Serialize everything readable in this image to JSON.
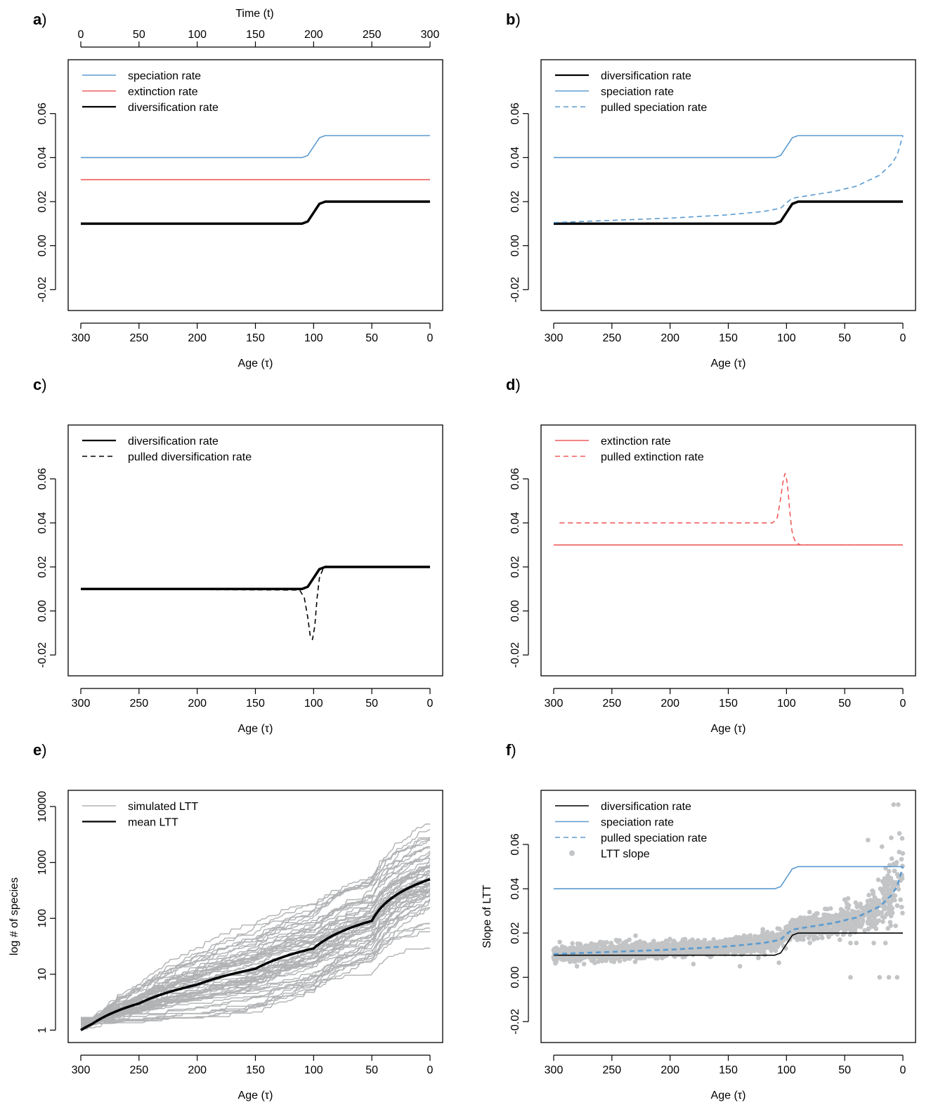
{
  "figure": {
    "colors": {
      "blue": "#5b9bd0",
      "red": "#ef5b5b",
      "black": "#000000",
      "gray": "#b0b2b4",
      "lightgray": "#c2c4c6"
    }
  },
  "chart_data": [
    {
      "panel": "a",
      "type": "line",
      "xlabel": "Age (τ)",
      "top_xlabel": "Time (t)",
      "ylabel": "",
      "xlim": [
        300,
        0
      ],
      "ylim": [
        -0.025,
        0.08
      ],
      "x_ticks": [
        300,
        250,
        200,
        150,
        100,
        50,
        0
      ],
      "top_ticks": [
        0,
        50,
        100,
        150,
        200,
        250,
        300
      ],
      "y_ticks": [
        "-0.02",
        "0.00",
        "0.02",
        "0.04",
        "0.06"
      ],
      "legend": "top-left",
      "series": [
        {
          "name": "speciation rate",
          "color": "#5b9bd0",
          "style": "solid",
          "width": 1.6,
          "x": [
            300,
            110,
            105,
            100,
            95,
            90,
            0
          ],
          "y": [
            0.04,
            0.04,
            0.041,
            0.045,
            0.049,
            0.05,
            0.05
          ]
        },
        {
          "name": "extinction rate",
          "color": "#ef5b5b",
          "style": "solid",
          "width": 1.6,
          "x": [
            300,
            0
          ],
          "y": [
            0.03,
            0.03
          ]
        },
        {
          "name": "diversification rate",
          "color": "#000000",
          "style": "solid",
          "width": 3.5,
          "x": [
            300,
            110,
            105,
            100,
            95,
            90,
            0
          ],
          "y": [
            0.01,
            0.01,
            0.011,
            0.015,
            0.019,
            0.02,
            0.02
          ]
        }
      ]
    },
    {
      "panel": "b",
      "type": "line",
      "xlabel": "Age (τ)",
      "ylabel": "",
      "xlim": [
        300,
        0
      ],
      "ylim": [
        -0.025,
        0.08
      ],
      "x_ticks": [
        300,
        250,
        200,
        150,
        100,
        50,
        0
      ],
      "y_ticks": [
        "-0.02",
        "0.00",
        "0.02",
        "0.04",
        "0.06"
      ],
      "legend": "top-left",
      "series": [
        {
          "name": "diversification rate",
          "color": "#000000",
          "style": "solid",
          "width": 3.5,
          "x": [
            300,
            110,
            105,
            100,
            95,
            90,
            0
          ],
          "y": [
            0.01,
            0.01,
            0.011,
            0.015,
            0.019,
            0.02,
            0.02
          ]
        },
        {
          "name": "speciation rate",
          "color": "#5b9bd0",
          "style": "solid",
          "width": 1.6,
          "x": [
            300,
            110,
            105,
            100,
            95,
            90,
            0
          ],
          "y": [
            0.04,
            0.04,
            0.041,
            0.045,
            0.049,
            0.05,
            0.05
          ]
        },
        {
          "name": "pulled speciation rate",
          "color": "#5b9bd0",
          "style": "dashed",
          "width": 1.6,
          "x": [
            300,
            250,
            200,
            150,
            120,
            105,
            100,
            95,
            90,
            60,
            40,
            20,
            10,
            5,
            0
          ],
          "y": [
            0.0105,
            0.0115,
            0.0125,
            0.014,
            0.0155,
            0.017,
            0.0195,
            0.0215,
            0.022,
            0.0245,
            0.027,
            0.032,
            0.037,
            0.041,
            0.05
          ]
        }
      ]
    },
    {
      "panel": "c",
      "type": "line",
      "xlabel": "Age (τ)",
      "ylabel": "",
      "xlim": [
        300,
        0
      ],
      "ylim": [
        -0.025,
        0.08
      ],
      "x_ticks": [
        300,
        250,
        200,
        150,
        100,
        50,
        0
      ],
      "y_ticks": [
        "-0.02",
        "0.00",
        "0.02",
        "0.04",
        "0.06"
      ],
      "legend": "top-left",
      "series": [
        {
          "name": "diversification rate",
          "color": "#000000",
          "style": "solid",
          "width": 3.5,
          "x": [
            300,
            110,
            105,
            100,
            95,
            90,
            0
          ],
          "y": [
            0.01,
            0.01,
            0.011,
            0.015,
            0.019,
            0.02,
            0.02
          ]
        },
        {
          "name": "pulled diversification rate",
          "color": "#000000",
          "style": "dashed",
          "width": 1.6,
          "x": [
            300,
            112,
            108,
            105,
            103,
            101,
            99,
            97,
            95,
            92,
            88,
            0
          ],
          "y": [
            0.01,
            0.0095,
            0.006,
            -0.003,
            -0.011,
            -0.013,
            -0.007,
            0.006,
            0.015,
            0.019,
            0.02,
            0.02
          ]
        }
      ]
    },
    {
      "panel": "d",
      "type": "line",
      "xlabel": "Age (τ)",
      "ylabel": "",
      "xlim": [
        300,
        0
      ],
      "ylim": [
        -0.025,
        0.08
      ],
      "x_ticks": [
        300,
        250,
        200,
        150,
        100,
        50,
        0
      ],
      "y_ticks": [
        "-0.02",
        "0.00",
        "0.02",
        "0.04",
        "0.06"
      ],
      "legend": "top-left",
      "series": [
        {
          "name": "extinction rate",
          "color": "#ef5b5b",
          "style": "solid",
          "width": 1.6,
          "x": [
            300,
            0
          ],
          "y": [
            0.03,
            0.03
          ]
        },
        {
          "name": "pulled extinction rate",
          "color": "#ef5b5b",
          "style": "dashed",
          "width": 1.6,
          "x": [
            295,
            112,
            108,
            105,
            103,
            101,
            99,
            97,
            95,
            92,
            88,
            0
          ],
          "y": [
            0.04,
            0.04,
            0.042,
            0.051,
            0.059,
            0.063,
            0.057,
            0.044,
            0.035,
            0.031,
            0.03,
            0.03
          ]
        }
      ]
    },
    {
      "panel": "e",
      "type": "line",
      "xlabel": "Age (τ)",
      "ylabel": "log # of species",
      "xlim": [
        300,
        0
      ],
      "ylim": [
        0.9,
        13000
      ],
      "log_y": true,
      "x_ticks": [
        300,
        250,
        200,
        150,
        100,
        50,
        0
      ],
      "y_ticks": [
        "1",
        "10",
        "100",
        "1000",
        "10000"
      ],
      "y_tick_values": [
        1,
        10,
        100,
        1000,
        10000
      ],
      "legend": "top-left",
      "legend_entries": [
        {
          "name": "simulated LTT",
          "color": "#b0b2b4"
        },
        {
          "name": "mean LTT",
          "color": "#000000"
        }
      ],
      "mean": {
        "x": [
          300,
          290,
          250,
          200,
          150,
          100,
          50,
          0
        ],
        "y": [
          1,
          1.3,
          3,
          6.5,
          12.5,
          29,
          90,
          500
        ]
      },
      "simulated": {
        "count": 60,
        "spread": "lognormal around mean",
        "range_at_0": [
          110,
          1500
        ]
      }
    },
    {
      "panel": "f",
      "type": "scatter",
      "xlabel": "Age (τ)",
      "ylabel": "Slope of LTT",
      "xlim": [
        300,
        0
      ],
      "ylim": [
        -0.025,
        0.08
      ],
      "x_ticks": [
        300,
        250,
        200,
        150,
        100,
        50,
        0
      ],
      "y_ticks": [
        "-0.02",
        "0.00",
        "0.02",
        "0.04",
        "0.06"
      ],
      "legend": "top-left",
      "series": [
        {
          "name": "diversification rate",
          "color": "#000000",
          "style": "solid",
          "width": 1.6,
          "x": [
            300,
            110,
            105,
            100,
            95,
            90,
            0
          ],
          "y": [
            0.01,
            0.01,
            0.011,
            0.015,
            0.019,
            0.02,
            0.02
          ]
        },
        {
          "name": "speciation rate",
          "color": "#5b9bd0",
          "style": "solid",
          "width": 1.6,
          "x": [
            300,
            110,
            105,
            100,
            95,
            90,
            0
          ],
          "y": [
            0.04,
            0.04,
            0.041,
            0.045,
            0.049,
            0.05,
            0.05
          ]
        },
        {
          "name": "pulled speciation rate",
          "color": "#5b9bd0",
          "style": "dashed",
          "width": 2.6,
          "x": [
            300,
            250,
            200,
            150,
            120,
            105,
            100,
            95,
            90,
            60,
            40,
            20,
            10,
            5,
            0
          ],
          "y": [
            0.0105,
            0.0115,
            0.0125,
            0.014,
            0.0155,
            0.017,
            0.0195,
            0.0215,
            0.022,
            0.0245,
            0.027,
            0.032,
            0.037,
            0.041,
            0.05
          ]
        },
        {
          "name": "LTT slope",
          "color": "#c2c4c6",
          "style": "points"
        }
      ]
    }
  ]
}
